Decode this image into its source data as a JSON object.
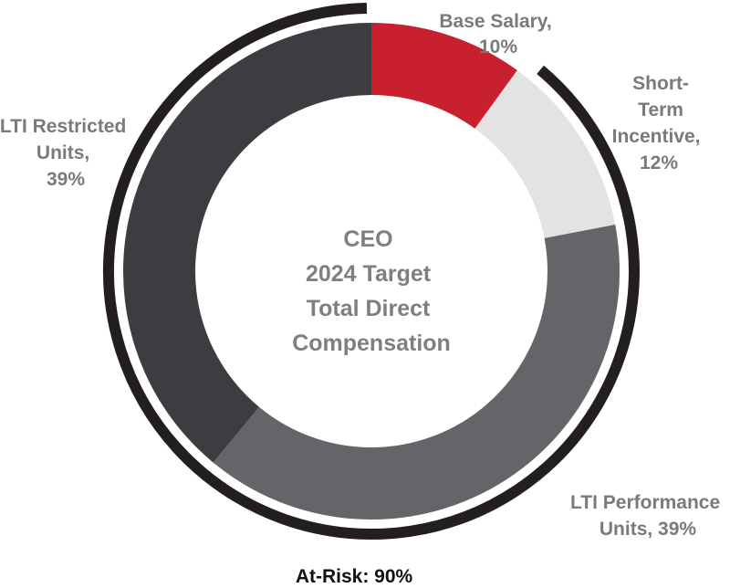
{
  "chart_data": {
    "type": "pie",
    "variant": "donut",
    "title_lines": [
      "CEO",
      "2024 Target",
      "Total Direct",
      "Compensation"
    ],
    "slices": [
      {
        "name": "Base Salary",
        "value": 10,
        "color": "#c8202e",
        "label_lines": [
          "Base Salary,",
          "10%"
        ]
      },
      {
        "name": "Short-Term Incentive",
        "value": 12,
        "color": "#e3e3e3",
        "label_lines": [
          "Short-",
          "Term",
          "Incentive,",
          "12%"
        ]
      },
      {
        "name": "LTI Performance Units",
        "value": 39,
        "color": "#646568",
        "label_lines": [
          "LTI Performance",
          "Units, 39%"
        ]
      },
      {
        "name": "LTI Restricted Units",
        "value": 39,
        "color": "#3c3d40",
        "label_lines": [
          "LTI Restricted",
          "Units,",
          "39%"
        ]
      }
    ],
    "bracket": {
      "label": "At-Risk: 90%",
      "value": 90,
      "covers": [
        "Short-Term Incentive",
        "LTI Performance Units",
        "LTI Restricted Units"
      ],
      "color": "#231f20"
    },
    "start_angle": "12 o'clock",
    "direction": "clockwise"
  }
}
